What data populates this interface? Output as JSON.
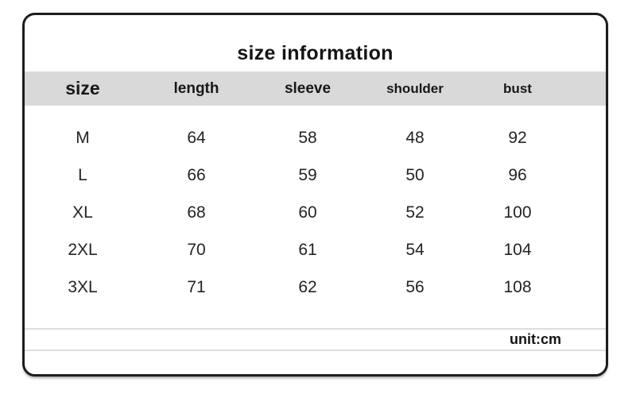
{
  "chart_data": {
    "type": "table",
    "title": "size information",
    "columns": [
      "size",
      "length",
      "sleeve",
      "shoulder",
      "bust"
    ],
    "rows": [
      [
        "M",
        "64",
        "58",
        "48",
        "92"
      ],
      [
        "L",
        "66",
        "59",
        "50",
        "96"
      ],
      [
        "XL",
        "68",
        "60",
        "52",
        "100"
      ],
      [
        "2XL",
        "70",
        "61",
        "54",
        "104"
      ],
      [
        "3XL",
        "71",
        "62",
        "56",
        "108"
      ]
    ],
    "note": "unit:cm",
    "layout": {
      "legend": "none",
      "grid": "off",
      "header_row_shaded": true
    }
  },
  "colors": {
    "background": "#ffffff",
    "card_border": "#1d1d1d",
    "header_row_bg": "#d9d9d9",
    "divider_line": "#dedede",
    "text": "#1c1c1c"
  }
}
